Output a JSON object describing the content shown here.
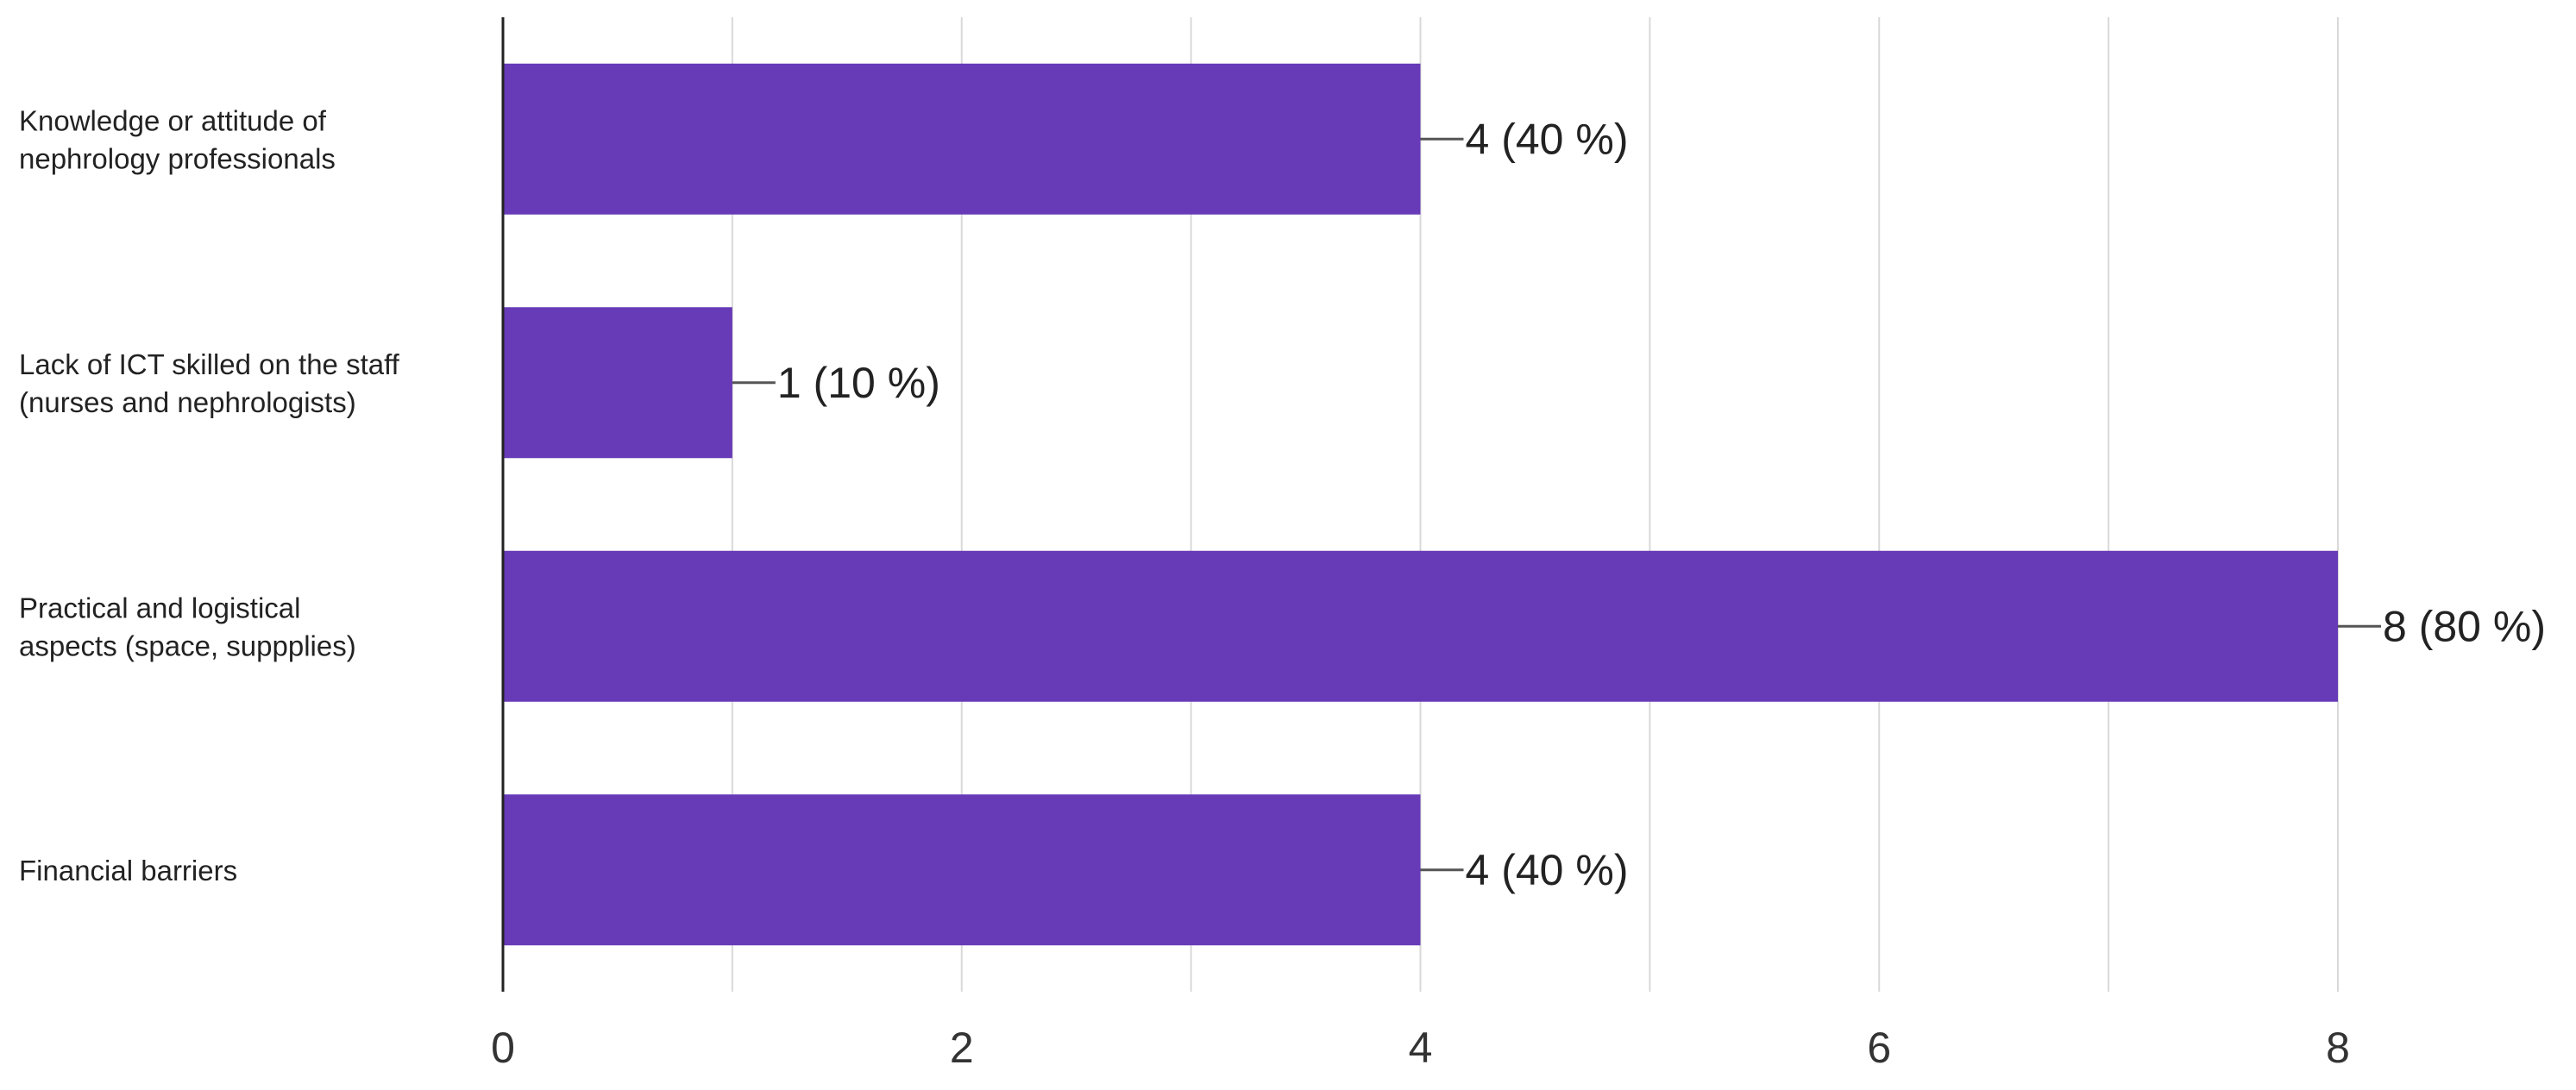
{
  "chart_data": {
    "type": "bar",
    "orientation": "horizontal",
    "categories": [
      [
        "Knowledge or attitude of",
        "nephrology professionals"
      ],
      [
        "Lack of ICT skilled on the staff",
        "(nurses and nephrologists)"
      ],
      [
        "Practical and logistical",
        "aspects (space, suppplies)"
      ],
      [
        "Financial barriers"
      ]
    ],
    "values": [
      4,
      1,
      8,
      4
    ],
    "data_labels": [
      "4 (40 %)",
      "1 (10 %)",
      "8 (80 %)",
      "4 (40 %)"
    ],
    "xlim": [
      0,
      8
    ],
    "x_ticks": [
      "0",
      "2",
      "4",
      "6",
      "8"
    ],
    "x_tick_values": [
      0,
      2,
      4,
      6,
      8
    ],
    "minor_grid_values": [
      1,
      3,
      5,
      7
    ],
    "grid": true,
    "bar_color": "#673ab7",
    "title": "",
    "xlabel": "",
    "ylabel": ""
  }
}
